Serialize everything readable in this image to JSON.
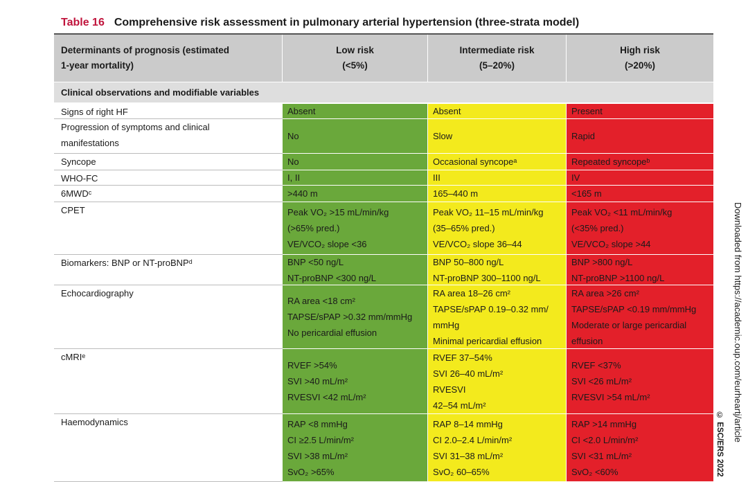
{
  "title": {
    "label": "Table 16",
    "text": "Comprehensive risk assessment in pulmonary arterial hypertension (three-strata model)"
  },
  "header": [
    [
      "Determinants of prognosis (estimated",
      "1-year mortality)"
    ],
    [
      "Low risk",
      "(<5%)"
    ],
    [
      "Intermediate risk",
      "(5–20%)"
    ],
    [
      "High risk",
      "(>20%)"
    ]
  ],
  "section": "Clinical observations and modifiable variables",
  "table": {
    "rows": [
      [
        [
          "Signs of right HF"
        ],
        [
          "Absent"
        ],
        [
          "Absent"
        ],
        [
          "Present"
        ]
      ],
      [
        [
          "Progression of symptoms and clinical",
          "manifestations"
        ],
        [
          "No"
        ],
        [
          "Slow"
        ],
        [
          "Rapid"
        ]
      ],
      [
        [
          "Syncope"
        ],
        [
          "No"
        ],
        [
          "Occasional syncopeᵃ"
        ],
        [
          "Repeated syncopeᵇ"
        ]
      ],
      [
        [
          "WHO-FC"
        ],
        [
          "I, II"
        ],
        [
          "III"
        ],
        [
          "IV"
        ]
      ],
      [
        [
          "6MWDᶜ"
        ],
        [
          ">440 m"
        ],
        [
          "165–440 m"
        ],
        [
          "<165 m"
        ]
      ],
      [
        [
          "CPET"
        ],
        [
          "Peak VO₂ >15 mL/min/kg",
          "(>65% pred.)",
          "VE/VCO₂ slope <36"
        ],
        [
          "Peak VO₂ 11–15 mL/min/kg",
          "(35–65% pred.)",
          "VE/VCO₂ slope 36–44"
        ],
        [
          "Peak VO₂ <11 mL/min/kg",
          "(<35% pred.)",
          "VE/VCO₂ slope >44"
        ]
      ],
      [
        [
          "Biomarkers: BNP or NT-proBNPᵈ"
        ],
        [
          "BNP <50 ng/L",
          "NT-proBNP <300 ng/L"
        ],
        [
          "BNP 50–800 ng/L",
          "NT-proBNP 300–1100 ng/L"
        ],
        [
          "BNP >800 ng/L",
          "NT-proBNP >1100 ng/L"
        ]
      ],
      [
        [
          "Echocardiography"
        ],
        [
          "RA area <18 cm²",
          "TAPSE/sPAP >0.32 mm/mmHg",
          "No pericardial effusion"
        ],
        [
          "RA area 18–26 cm²",
          "TAPSE/sPAP 0.19–0.32 mm/",
          "mmHg",
          "Minimal pericardial effusion"
        ],
        [
          "RA area >26 cm²",
          "TAPSE/sPAP <0.19 mm/mmHg",
          "Moderate or large pericardial",
          "effusion"
        ]
      ],
      [
        [
          "cMRIᵉ"
        ],
        [
          "RVEF >54%",
          "SVI >40 mL/m²",
          "RVESVI <42 mL/m²"
        ],
        [
          "RVEF 37–54%",
          "SVI 26–40 mL/m²",
          "RVESVI",
          "42–54 mL/m²"
        ],
        [
          "RVEF <37%",
          "SVI <26 mL/m²",
          "RVESVI >54 mL/m²"
        ]
      ],
      [
        [
          "Haemodynamics"
        ],
        [
          "RAP <8 mmHg",
          "CI ≥2.5 L/min/m²",
          "SVI >38 mL/m²",
          "SvO₂ >65%"
        ],
        [
          "RAP 8–14 mmHg",
          "CI 2.0–2.4 L/min/m²",
          "SVI 31–38 mL/m²",
          "SvO₂ 60–65%"
        ],
        [
          "RAP >14 mmHg",
          "CI <2.0 L/min/m²",
          "SVI <31 mL/m²",
          "SvO₂ <60%"
        ]
      ]
    ]
  },
  "side": {
    "downloaded": "Downloaded from https://academic.oup.com/eurheartj/article",
    "copyright": "© ESC/ERS 2022"
  }
}
